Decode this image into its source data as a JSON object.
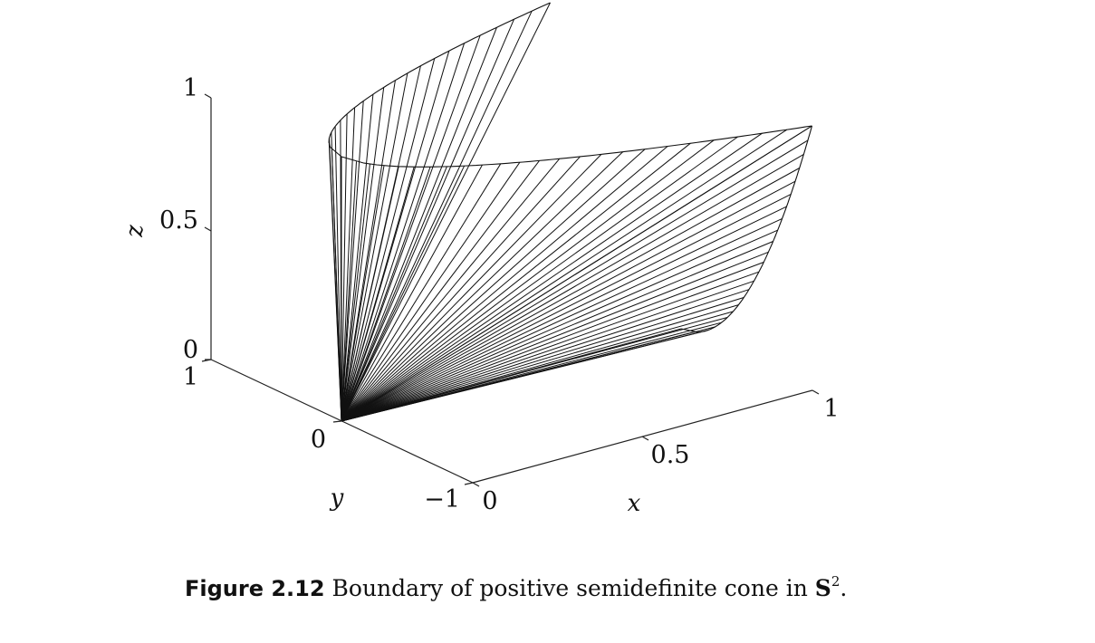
{
  "chart_data": {
    "type": "surface",
    "axes": {
      "x": {
        "label": "x",
        "ticks": [
          "0",
          "0.5",
          "1"
        ],
        "range": [
          0,
          1
        ]
      },
      "y": {
        "label": "y",
        "ticks": [
          "−1",
          "0",
          "1"
        ],
        "range": [
          -1,
          1
        ]
      },
      "z": {
        "label": "z",
        "ticks": [
          "0",
          "0.5",
          "1"
        ],
        "range": [
          0,
          1
        ]
      }
    },
    "surface": {
      "description": "Boundary of the 2x2 PSD cone: x, z >= 0, xz = y^2",
      "rays_from_origin": true
    }
  },
  "caption": {
    "figure_number": "Figure 2.12",
    "text": "Boundary of positive semidefinite cone in",
    "space": "S",
    "exponent": "2",
    "period": "."
  }
}
